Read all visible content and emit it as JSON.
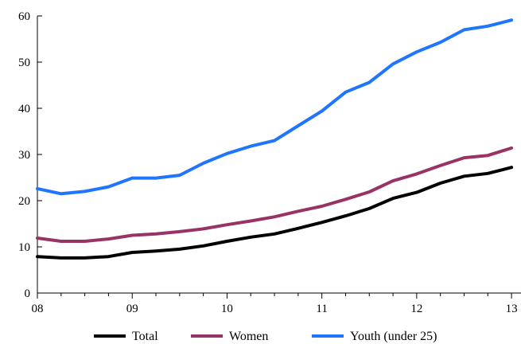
{
  "chart_data": {
    "type": "line",
    "title": "",
    "xlabel": "",
    "ylabel": "",
    "ylim": [
      0,
      60
    ],
    "yticks": [
      "0",
      "10",
      "20",
      "30",
      "40",
      "50",
      "60"
    ],
    "xlim": [
      2008,
      2013.1
    ],
    "xticks": [
      {
        "value": 2008,
        "label": "08"
      },
      {
        "value": 2009,
        "label": "09"
      },
      {
        "value": 2010,
        "label": "10"
      },
      {
        "value": 2011,
        "label": "11"
      },
      {
        "value": 2012,
        "label": "12"
      },
      {
        "value": 2013,
        "label": "13"
      }
    ],
    "x": [
      2008.0,
      2008.25,
      2008.5,
      2008.75,
      2009.0,
      2009.25,
      2009.5,
      2009.75,
      2010.0,
      2010.25,
      2010.5,
      2010.75,
      2011.0,
      2011.25,
      2011.5,
      2011.75,
      2012.0,
      2012.25,
      2012.5,
      2012.75,
      2013.0
    ],
    "grid": false,
    "legend_position": "bottom",
    "series": [
      {
        "name": "Total",
        "color": "#000000",
        "values": [
          7.9,
          7.6,
          7.6,
          7.9,
          8.8,
          9.1,
          9.5,
          10.2,
          11.2,
          12.1,
          12.8,
          14.0,
          15.3,
          16.7,
          18.3,
          20.5,
          21.8,
          23.8,
          25.3,
          25.9,
          27.2
        ]
      },
      {
        "name": "Women",
        "color": "#993366",
        "values": [
          11.9,
          11.2,
          11.2,
          11.7,
          12.5,
          12.8,
          13.3,
          13.9,
          14.8,
          15.6,
          16.5,
          17.7,
          18.8,
          20.3,
          21.9,
          24.3,
          25.8,
          27.6,
          29.3,
          29.8,
          31.4
        ]
      },
      {
        "name": "Youth (under 25)",
        "color": "#1f75fe",
        "values": [
          22.6,
          21.5,
          22.0,
          23.0,
          24.9,
          24.9,
          25.5,
          28.1,
          30.2,
          31.8,
          33.0,
          36.2,
          39.4,
          43.5,
          45.6,
          49.6,
          52.2,
          54.3,
          57.0,
          57.8,
          59.1
        ]
      }
    ]
  }
}
